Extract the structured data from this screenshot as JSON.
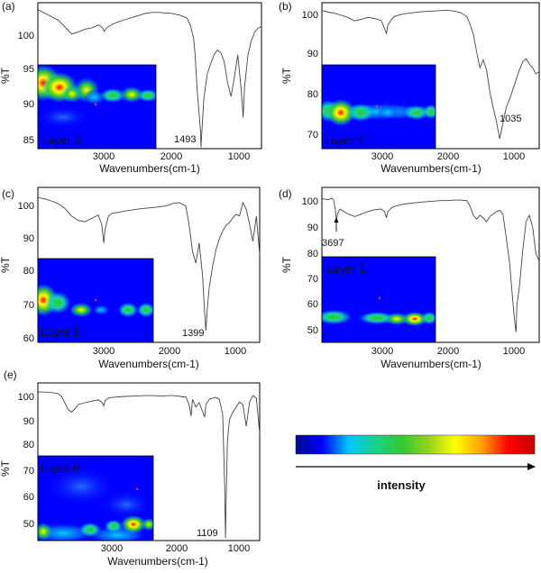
{
  "chart_data": [
    {
      "type": "line",
      "panel_label": "(a)",
      "map_label": "Layer 3",
      "annotations": [
        "1493"
      ],
      "xlabel": "Wavenumbers(cm-1)",
      "ylabel": "%T",
      "x_ticks": [
        "3000",
        "2000",
        "1000"
      ],
      "y_ticks": [
        "85",
        "90",
        "95",
        "100"
      ],
      "xlim": [
        3900,
        600
      ],
      "ylim": [
        84,
        105
      ],
      "series": [
        {
          "x": [
            3900,
            3800,
            3700,
            3600,
            3500,
            3400,
            3300,
            3200,
            3100,
            3000,
            2950,
            2920,
            2900,
            2850,
            2800,
            2700,
            2600,
            2500,
            2400,
            2300,
            2200,
            2100,
            2000,
            1950,
            1900,
            1800,
            1700,
            1650,
            1600,
            1580,
            1550,
            1500,
            1493,
            1480,
            1450,
            1400,
            1350,
            1300,
            1250,
            1200,
            1150,
            1100,
            1050,
            1000,
            950,
            900,
            870,
            850,
            800,
            750,
            700,
            650,
            600
          ],
          "y": [
            104,
            103.5,
            103,
            102.5,
            101.5,
            100.5,
            100.8,
            101.2,
            101.4,
            101.8,
            101.4,
            100.9,
            101.2,
            101.6,
            101.9,
            102.3,
            102.6,
            102.9,
            103.2,
            103.5,
            103.6,
            103.6,
            103.5,
            103.5,
            103.4,
            103.2,
            102.8,
            101.8,
            99.8,
            97.5,
            92.5,
            86.5,
            84.2,
            86.5,
            91.2,
            94.8,
            96.2,
            97.5,
            98.2,
            97.8,
            96.5,
            93.5,
            91.5,
            94.2,
            97.5,
            92.5,
            88.5,
            92.8,
            97.5,
            99.5,
            100.8,
            101.3,
            101.6
          ]
        }
      ]
    },
    {
      "type": "line",
      "panel_label": "(b)",
      "map_label": "Layer 2",
      "annotations": [
        "1035"
      ],
      "xlabel": "Wavenumbers(cm-1)",
      "ylabel": "%T",
      "x_ticks": [
        "3000",
        "2000",
        "1000"
      ],
      "y_ticks": [
        "70",
        "80",
        "90",
        "100"
      ],
      "xlim": [
        3900,
        600
      ],
      "ylim": [
        66,
        103
      ],
      "series": [
        {
          "x": [
            3900,
            3800,
            3700,
            3600,
            3500,
            3400,
            3300,
            3200,
            3100,
            3000,
            2950,
            2920,
            2900,
            2850,
            2800,
            2700,
            2600,
            2500,
            2400,
            2300,
            2200,
            2100,
            2000,
            1950,
            1900,
            1800,
            1700,
            1650,
            1600,
            1550,
            1500,
            1450,
            1400,
            1350,
            1300,
            1250,
            1200,
            1150,
            1100,
            1035,
            1000,
            950,
            900,
            850,
            800,
            750,
            700,
            650,
            600
          ],
          "y": [
            101,
            100.6,
            100.3,
            99.8,
            99.2,
            98.4,
            98.8,
            99.3,
            99,
            98.5,
            96.5,
            95.2,
            97.2,
            98.6,
            99.5,
            100,
            100.3,
            100.5,
            100.7,
            100.8,
            100.9,
            101,
            101.1,
            101,
            100.9,
            100.5,
            99.5,
            97.5,
            95,
            90.5,
            86.5,
            88.5,
            86,
            80.5,
            76.5,
            73,
            68.5,
            72.5,
            76.5,
            79.2,
            81,
            83.5,
            86,
            88,
            88.8,
            87.5,
            86.5,
            85,
            85.5
          ]
        }
      ]
    },
    {
      "type": "line",
      "panel_label": "(c)",
      "map_label": "Layer 2",
      "annotations": [
        "1399"
      ],
      "xlabel": "Wavenumbers(cm-1)",
      "ylabel": "%T",
      "x_ticks": [
        "3000",
        "2000",
        "1000"
      ],
      "y_ticks": [
        "60",
        "70",
        "80",
        "90",
        "100"
      ],
      "xlim": [
        3900,
        600
      ],
      "ylim": [
        58,
        104
      ],
      "series": [
        {
          "x": [
            3900,
            3800,
            3700,
            3600,
            3500,
            3400,
            3300,
            3200,
            3100,
            3000,
            2950,
            2920,
            2900,
            2850,
            2800,
            2700,
            2600,
            2500,
            2400,
            2300,
            2200,
            2100,
            2000,
            1950,
            1900,
            1800,
            1700,
            1650,
            1600,
            1550,
            1500,
            1450,
            1420,
            1399,
            1380,
            1350,
            1300,
            1250,
            1200,
            1150,
            1100,
            1050,
            1000,
            950,
            900,
            850,
            800,
            750,
            700,
            650,
            600
          ],
          "y": [
            101,
            100.6,
            100,
            99.2,
            97.8,
            95.5,
            94.2,
            93.8,
            94.8,
            95.8,
            93,
            87.5,
            91.5,
            95.5,
            96.3,
            96.6,
            97,
            97.3,
            97.6,
            97.8,
            98,
            98.2,
            98.5,
            98.8,
            99.2,
            99.5,
            98.5,
            93,
            85,
            81.5,
            87.5,
            78,
            67,
            61.5,
            68,
            74.5,
            80.5,
            85.5,
            88.8,
            91,
            92.8,
            93.5,
            95,
            96,
            95.5,
            99.5,
            97.5,
            93,
            88,
            95.5,
            84
          ]
        }
      ]
    },
    {
      "type": "line",
      "panel_label": "(d)",
      "map_label": "Layer 1",
      "annotations": [
        "3697"
      ],
      "xlabel": "Wavenumbers(cm-1)",
      "ylabel": "%T",
      "x_ticks": [
        "3000",
        "2000",
        "1000"
      ],
      "y_ticks": [
        "50",
        "60",
        "70",
        "80",
        "90",
        "100"
      ],
      "xlim": [
        3900,
        600
      ],
      "ylim": [
        44,
        105
      ],
      "series": [
        {
          "x": [
            3900,
            3800,
            3750,
            3720,
            3697,
            3680,
            3650,
            3620,
            3600,
            3500,
            3400,
            3300,
            3200,
            3100,
            3000,
            2950,
            2920,
            2900,
            2850,
            2800,
            2700,
            2600,
            2500,
            2400,
            2300,
            2200,
            2100,
            2000,
            1950,
            1900,
            1800,
            1700,
            1650,
            1600,
            1550,
            1500,
            1450,
            1400,
            1350,
            1300,
            1250,
            1200,
            1150,
            1100,
            1050,
            1000,
            980,
            960,
            950,
            940,
            920,
            900,
            850,
            800,
            750,
            700,
            650,
            600
          ],
          "y": [
            100.5,
            100.2,
            100.8,
            100,
            96.5,
            92.5,
            95.5,
            96.5,
            96,
            94.5,
            93.5,
            94.5,
            95.5,
            96.2,
            96.5,
            95.5,
            93,
            95.5,
            96.8,
            97.5,
            98.2,
            98.6,
            98.9,
            99.2,
            99.4,
            99.6,
            99.8,
            99.8,
            99.9,
            100,
            100,
            99.8,
            97.5,
            94,
            92.5,
            94,
            93,
            91.5,
            93.5,
            94.5,
            95.5,
            96,
            94.5,
            85,
            75.5,
            60,
            54.5,
            49.5,
            48,
            58.5,
            62,
            66,
            80,
            91.5,
            94,
            89.5,
            79,
            76
          ]
        }
      ]
    },
    {
      "type": "line",
      "panel_label": "(e)",
      "map_label": "Layer 0",
      "annotations": [
        "1109"
      ],
      "xlabel": "Wavenumbers(cm-1)",
      "ylabel": "%T",
      "x_ticks": [
        "3000",
        "2000",
        "1000"
      ],
      "y_ticks": [
        "50",
        "60",
        "70",
        "80",
        "90",
        "100"
      ],
      "xlim": [
        3900,
        600
      ],
      "ylim": [
        43,
        105
      ],
      "series": [
        {
          "x": [
            3900,
            3800,
            3700,
            3600,
            3550,
            3500,
            3450,
            3400,
            3350,
            3300,
            3200,
            3100,
            3000,
            2950,
            2920,
            2900,
            2850,
            2800,
            2700,
            2600,
            2500,
            2400,
            2300,
            2200,
            2100,
            2000,
            1950,
            1900,
            1800,
            1750,
            1700,
            1650,
            1620,
            1600,
            1550,
            1500,
            1450,
            1420,
            1400,
            1350,
            1300,
            1250,
            1200,
            1150,
            1120,
            1109,
            1095,
            1080,
            1050,
            1000,
            950,
            900,
            850,
            800,
            750,
            700,
            650,
            600
          ],
          "y": [
            101.5,
            101.4,
            101.2,
            100.8,
            99.8,
            97.2,
            94.5,
            93.5,
            94.8,
            96.5,
            97.2,
            97.8,
            98.3,
            97.5,
            96,
            98,
            99,
            99.3,
            99.5,
            99.7,
            99.8,
            99.9,
            100,
            100,
            99.9,
            99.9,
            100,
            100,
            99.8,
            99.5,
            99.5,
            96.5,
            92,
            98.5,
            95.5,
            97.2,
            93.8,
            91.5,
            96.5,
            98.5,
            99,
            99.3,
            98.5,
            92.5,
            64,
            44,
            64,
            82,
            90.5,
            93.5,
            95.5,
            97.5,
            96.5,
            88,
            97.5,
            100,
            99,
            85
          ]
        }
      ]
    }
  ],
  "colorbar": {
    "label": "intensity",
    "stops": [
      "#000b8a",
      "#0000ff",
      "#00c8ff",
      "#19d28c",
      "#32c832",
      "#96d21e",
      "#ffff00",
      "#ffa000",
      "#ff0000",
      "#c80000"
    ]
  }
}
